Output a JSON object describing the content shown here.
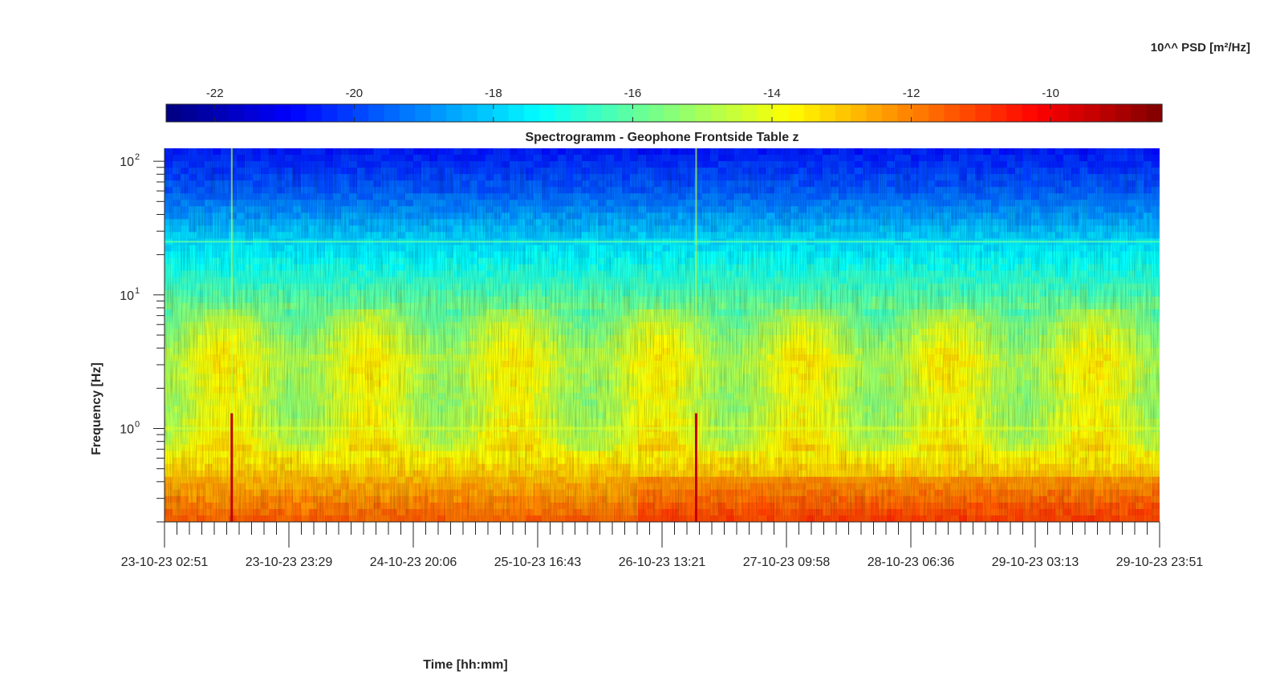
{
  "chart_data": {
    "type": "heatmap",
    "title": "Spectrogramm - Geophone Frontside Table z",
    "xlabel": "Time [hh:mm]",
    "ylabel": "Frequency [Hz]",
    "y_scale": "log",
    "ylim": [
      0.2,
      125
    ],
    "y_ticks": [
      {
        "value": 1,
        "base": "10",
        "exp": "0"
      },
      {
        "value": 10,
        "base": "10",
        "exp": "1"
      },
      {
        "value": 100,
        "base": "10",
        "exp": "2"
      }
    ],
    "x_start": "23-10-23 02:51",
    "x_end": "29-10-23 23:51",
    "x_tick_labels": [
      "23-10-23 02:51",
      "23-10-23 23:29",
      "24-10-23 20:06",
      "25-10-23 16:43",
      "26-10-23 13:21",
      "27-10-23 09:58",
      "28-10-23 06:36",
      "29-10-23 03:13",
      "29-10-23 23:51"
    ],
    "colorbar": {
      "title": "10^^ PSD [m²/Hz]",
      "colormap": "jet",
      "range": [
        -22.7,
        -8.4
      ],
      "ticks": [
        -22,
        -20,
        -18,
        -16,
        -14,
        -12,
        -10
      ],
      "tick_labels": [
        "-22",
        "-20",
        "-18",
        "-16",
        "-14",
        "-12",
        "-10"
      ]
    },
    "features": {
      "tonal_line_hz": 25,
      "secondary_line_hz": 1.0,
      "transient_events": [
        "23-10-23 14:00",
        "26-10-23 19:00"
      ],
      "low_frequency_level_high_band_hz": [
        0.2,
        0.3
      ]
    },
    "grid": false,
    "legend": "none"
  }
}
